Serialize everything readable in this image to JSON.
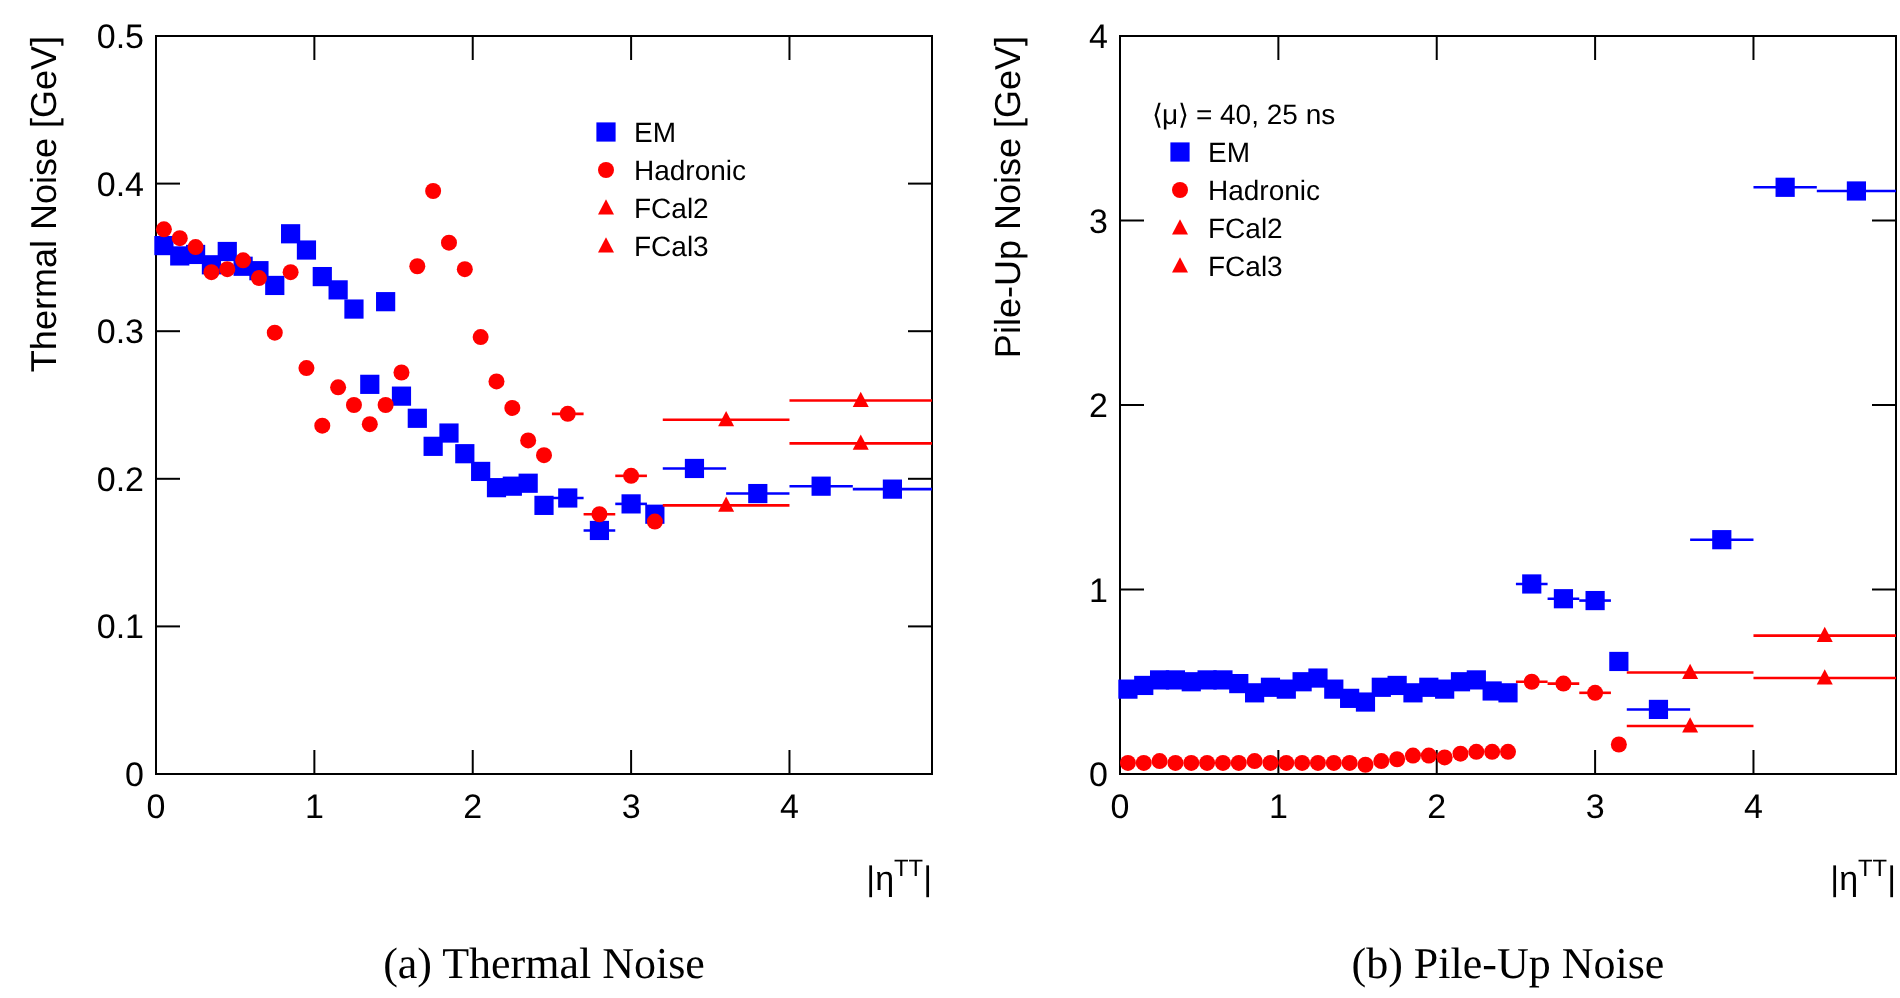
{
  "chart_data": [
    {
      "type": "scatter",
      "title": "(a) Thermal Noise",
      "xlabel": "|η$^{TT}$|",
      "ylabel": "Thermal Noise [GeV]",
      "xlim": [
        0,
        4.9
      ],
      "ylim": [
        0,
        0.5
      ],
      "xticks": [
        0,
        1,
        2,
        3,
        4
      ],
      "yticks": [
        0,
        0.1,
        0.2,
        0.3,
        0.4,
        0.5
      ],
      "legend": "top right",
      "series": [
        {
          "name": "EM",
          "color": "#0000ff",
          "marker": "square",
          "x": [
            0.05,
            0.15,
            0.25,
            0.35,
            0.45,
            0.55,
            0.65,
            0.75,
            0.85,
            0.95,
            1.05,
            1.15,
            1.25,
            1.35,
            1.45,
            1.55,
            1.65,
            1.75,
            1.85,
            1.95,
            2.05,
            2.15,
            2.25,
            2.35,
            2.45,
            2.6,
            2.8,
            3.0,
            3.15,
            3.4,
            3.8,
            4.2,
            4.65
          ],
          "values": [
            0.358,
            0.351,
            0.352,
            0.345,
            0.354,
            0.344,
            0.341,
            0.331,
            0.366,
            0.355,
            0.337,
            0.328,
            0.315,
            0.264,
            0.32,
            0.256,
            0.241,
            0.222,
            0.231,
            0.217,
            0.205,
            0.194,
            0.195,
            0.197,
            0.182,
            0.187,
            0.165,
            0.183,
            0.176,
            0.207,
            0.19,
            0.195,
            0.193
          ],
          "xerrors": [
            null,
            null,
            null,
            null,
            null,
            null,
            null,
            null,
            null,
            null,
            null,
            null,
            null,
            null,
            null,
            null,
            null,
            null,
            null,
            null,
            null,
            null,
            null,
            null,
            null,
            0.1,
            0.1,
            0.1,
            null,
            0.2,
            0.2,
            0.2,
            0.25
          ]
        },
        {
          "name": "Hadronic",
          "color": "#ff0000",
          "marker": "circle",
          "x": [
            0.05,
            0.15,
            0.25,
            0.35,
            0.45,
            0.55,
            0.65,
            0.75,
            0.85,
            0.95,
            1.05,
            1.15,
            1.25,
            1.35,
            1.45,
            1.55,
            1.65,
            1.75,
            1.85,
            1.95,
            2.05,
            2.15,
            2.25,
            2.35,
            2.45,
            2.6,
            2.8,
            3.0,
            3.15
          ],
          "values": [
            0.369,
            0.363,
            0.357,
            0.34,
            0.342,
            0.348,
            0.336,
            0.299,
            0.34,
            0.275,
            0.236,
            0.262,
            0.25,
            0.237,
            0.25,
            0.272,
            0.344,
            0.395,
            0.36,
            0.342,
            0.296,
            0.266,
            0.248,
            0.226,
            0.216,
            0.244,
            0.176,
            0.202,
            0.171
          ],
          "xerrors": [
            null,
            null,
            null,
            null,
            null,
            null,
            null,
            null,
            null,
            null,
            null,
            null,
            null,
            null,
            null,
            null,
            null,
            null,
            null,
            null,
            null,
            null,
            null,
            null,
            null,
            0.1,
            0.1,
            0.1,
            null
          ]
        },
        {
          "name": "FCal2",
          "color": "#ff0000",
          "marker": "triangle",
          "x": [
            3.6,
            4.45
          ],
          "values": [
            0.24,
            0.253
          ],
          "xerrors": [
            0.4,
            0.45
          ]
        },
        {
          "name": "FCal3",
          "color": "#ff0000",
          "marker": "triangle",
          "x": [
            3.6,
            4.45
          ],
          "values": [
            0.182,
            0.224
          ],
          "xerrors": [
            0.4,
            0.45
          ]
        }
      ]
    },
    {
      "type": "scatter",
      "title": "(b) Pile-Up Noise",
      "xlabel": "|η$^{TT}$|",
      "ylabel": "Pile-Up Noise [GeV]",
      "legend_title": "⟨μ⟩ = 40, 25 ns",
      "xlim": [
        0,
        4.9
      ],
      "ylim": [
        0,
        4
      ],
      "xticks": [
        0,
        1,
        2,
        3,
        4
      ],
      "yticks": [
        0,
        1,
        2,
        3,
        4
      ],
      "legend": "top left",
      "series": [
        {
          "name": "EM",
          "color": "#0000ff",
          "marker": "square",
          "x": [
            0.05,
            0.15,
            0.25,
            0.35,
            0.45,
            0.55,
            0.65,
            0.75,
            0.85,
            0.95,
            1.05,
            1.15,
            1.25,
            1.35,
            1.45,
            1.55,
            1.65,
            1.75,
            1.85,
            1.95,
            2.05,
            2.15,
            2.25,
            2.35,
            2.45,
            2.6,
            2.8,
            3.0,
            3.15,
            3.4,
            3.8,
            4.2,
            4.65
          ],
          "values": [
            0.46,
            0.48,
            0.51,
            0.51,
            0.5,
            0.51,
            0.51,
            0.49,
            0.44,
            0.47,
            0.46,
            0.5,
            0.52,
            0.46,
            0.41,
            0.39,
            0.47,
            0.48,
            0.44,
            0.47,
            0.46,
            0.5,
            0.51,
            0.45,
            0.44,
            1.03,
            0.95,
            0.94,
            0.61,
            0.35,
            1.27,
            3.18,
            3.16
          ],
          "xerrors": [
            null,
            null,
            null,
            null,
            null,
            null,
            null,
            null,
            null,
            null,
            null,
            null,
            null,
            null,
            null,
            null,
            null,
            null,
            null,
            null,
            null,
            null,
            null,
            null,
            null,
            0.1,
            0.1,
            0.1,
            null,
            0.2,
            0.2,
            0.2,
            0.25
          ]
        },
        {
          "name": "Hadronic",
          "color": "#ff0000",
          "marker": "circle",
          "x": [
            0.05,
            0.15,
            0.25,
            0.35,
            0.45,
            0.55,
            0.65,
            0.75,
            0.85,
            0.95,
            1.05,
            1.15,
            1.25,
            1.35,
            1.45,
            1.55,
            1.65,
            1.75,
            1.85,
            1.95,
            2.05,
            2.15,
            2.25,
            2.35,
            2.45,
            2.6,
            2.8,
            3.0,
            3.15
          ],
          "values": [
            0.06,
            0.06,
            0.07,
            0.06,
            0.06,
            0.06,
            0.06,
            0.06,
            0.07,
            0.06,
            0.06,
            0.06,
            0.06,
            0.06,
            0.06,
            0.05,
            0.07,
            0.08,
            0.1,
            0.1,
            0.09,
            0.11,
            0.12,
            0.12,
            0.12,
            0.5,
            0.49,
            0.44,
            0.16
          ],
          "xerrors": [
            null,
            null,
            null,
            null,
            null,
            null,
            null,
            null,
            null,
            null,
            null,
            null,
            null,
            null,
            null,
            null,
            null,
            null,
            null,
            null,
            null,
            null,
            null,
            null,
            null,
            0.1,
            0.1,
            0.1,
            null
          ]
        },
        {
          "name": "FCal2",
          "color": "#ff0000",
          "marker": "triangle",
          "x": [
            3.6,
            4.45
          ],
          "values": [
            0.55,
            0.75
          ],
          "xerrors": [
            0.4,
            0.45
          ]
        },
        {
          "name": "FCal3",
          "color": "#ff0000",
          "marker": "triangle",
          "x": [
            3.6,
            4.45
          ],
          "values": [
            0.26,
            0.52
          ],
          "xerrors": [
            0.4,
            0.45
          ]
        }
      ]
    }
  ]
}
